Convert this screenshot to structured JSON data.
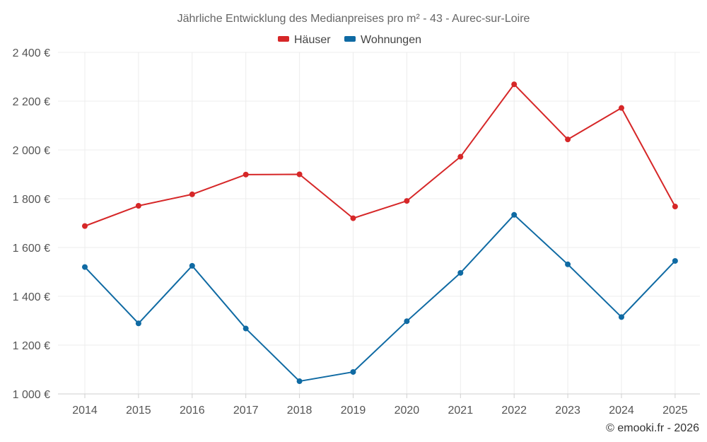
{
  "chart_data": {
    "type": "line",
    "title": "Jährliche Entwicklung des Medianpreises pro m² - 43 - Aurec-sur-Loire",
    "xlabel": "",
    "ylabel": "",
    "categories": [
      "2014",
      "2015",
      "2016",
      "2017",
      "2018",
      "2019",
      "2020",
      "2021",
      "2022",
      "2023",
      "2024",
      "2025"
    ],
    "ylim": [
      1000,
      2400
    ],
    "yticks": [
      1000,
      1200,
      1400,
      1600,
      1800,
      2000,
      2200,
      2400
    ],
    "ytick_labels": [
      "1 000 €",
      "1 200 €",
      "1 400 €",
      "1 600 €",
      "1 800 €",
      "2 000 €",
      "2 200 €",
      "2 400 €"
    ],
    "grid": true,
    "legend_position": "top-center",
    "series": [
      {
        "name": "Häuser",
        "color": "#d62728",
        "values": [
          1688,
          1771,
          1818,
          1899,
          1900,
          1720,
          1791,
          1972,
          2269,
          2043,
          2172,
          1768
        ]
      },
      {
        "name": "Wohnungen",
        "color": "#0f6aa3",
        "values": [
          1520,
          1289,
          1525,
          1268,
          1052,
          1090,
          1298,
          1496,
          1734,
          1531,
          1315,
          1545
        ]
      }
    ],
    "credit": "© emooki.fr - 2026"
  }
}
